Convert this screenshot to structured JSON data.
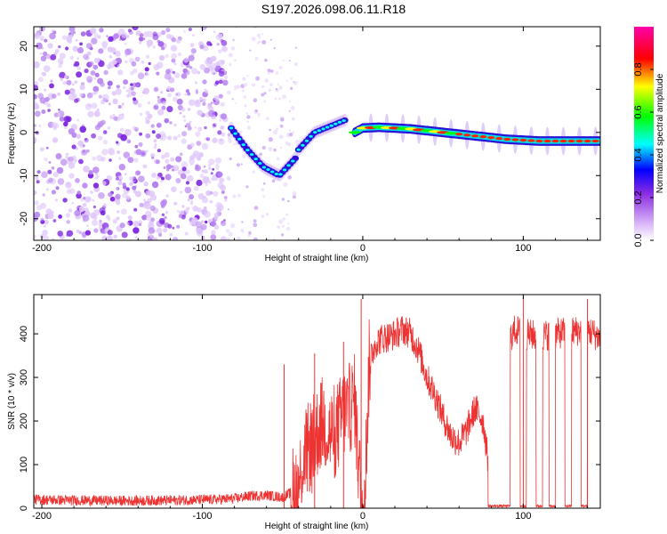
{
  "title": "S197.2026.098.06.11.R18",
  "chart_data": [
    {
      "type": "heatmap",
      "xlabel": "Height of straight line (km)",
      "ylabel": "Frequency (Hz)",
      "xlim": [
        -205,
        148
      ],
      "ylim": [
        -25,
        24.5
      ],
      "xticks": [
        -200,
        -100,
        0,
        100
      ],
      "yticks": [
        -20,
        -10,
        0,
        10,
        20
      ],
      "xtick_labels": [
        "-200",
        "-100",
        "0",
        "100"
      ],
      "ytick_labels": [
        "-20",
        "-10",
        "0",
        "10",
        "20"
      ],
      "colorbar": {
        "label": "Normalized spectral amplitude",
        "range": [
          0,
          1
        ],
        "ticks": [
          0.0,
          0.2,
          0.4,
          0.6,
          0.8
        ],
        "tick_labels": [
          "0.0",
          "0.2",
          "0.4",
          "0.6",
          "0.8"
        ],
        "colors": [
          "#ffffff",
          "#8a2be2",
          "#0000ff",
          "#00ffff",
          "#00ff00",
          "#ffff00",
          "#ff0000",
          "#ff00aa"
        ]
      },
      "features": [
        {
          "name": "noise region",
          "x_range": [
            -205,
            -85
          ],
          "y_range": [
            -25,
            24.5
          ],
          "amplitude": 0.15
        },
        {
          "name": "descending branch",
          "points": [
            [
              -82,
              1
            ],
            [
              -72,
              -4
            ],
            [
              -62,
              -8
            ],
            [
              -52,
              -10
            ],
            [
              -42,
              -6
            ]
          ],
          "amplitude": 0.45
        },
        {
          "name": "ascending branch",
          "points": [
            [
              -40,
              -4
            ],
            [
              -30,
              0
            ],
            [
              -20,
              1.5
            ],
            [
              -10,
              3
            ]
          ],
          "amplitude": 0.45
        },
        {
          "name": "main trace",
          "points": [
            [
              -5,
              0
            ],
            [
              0,
              1
            ],
            [
              10,
              1.2
            ],
            [
              30,
              0.8
            ],
            [
              50,
              0
            ],
            [
              70,
              -0.8
            ],
            [
              90,
              -1.6
            ],
            [
              110,
              -2
            ],
            [
              148,
              -2
            ]
          ],
          "amplitude": 0.95
        }
      ]
    },
    {
      "type": "line",
      "xlabel": "Height of straight line (km)",
      "ylabel": "SNR (10 * v/v)",
      "xlim": [
        -205,
        148
      ],
      "ylim": [
        0,
        490
      ],
      "xticks": [
        -200,
        -100,
        0,
        100
      ],
      "yticks": [
        0,
        100,
        200,
        300,
        400
      ],
      "xtick_labels": [
        "-200",
        "-100",
        "0",
        "100"
      ],
      "ytick_labels": [
        "0",
        "100",
        "200",
        "300",
        "400"
      ],
      "series": [
        {
          "name": "SNR",
          "color": "#ee3333",
          "x": [
            -205,
            -180,
            -150,
            -120,
            -90,
            -80,
            -70,
            -60,
            -50,
            -45,
            -40,
            -38,
            -35,
            -30,
            -25,
            -20,
            -15,
            -12,
            -8,
            -5,
            -3,
            -1,
            1,
            4,
            8,
            12,
            18,
            25,
            30,
            35,
            40,
            45,
            50,
            55,
            60,
            65,
            70,
            75,
            78,
            80,
            85,
            90,
            95,
            100,
            110,
            120,
            130,
            140,
            148
          ],
          "values": [
            20,
            18,
            17,
            18,
            20,
            22,
            28,
            30,
            25,
            35,
            45,
            100,
            130,
            160,
            200,
            170,
            190,
            220,
            230,
            250,
            120,
            30,
            10,
            330,
            380,
            390,
            395,
            410,
            400,
            360,
            300,
            260,
            210,
            165,
            150,
            180,
            230,
            200,
            110,
            20,
            10,
            380,
            410,
            400,
            395,
            400,
            405,
            410,
            390
          ]
        }
      ],
      "dropouts": [
        [
          78,
          92
        ],
        [
          98,
          102
        ],
        [
          108,
          112
        ],
        [
          116,
          120
        ],
        [
          126,
          130
        ],
        [
          136,
          140
        ]
      ],
      "spikes": [
        [
          -49,
          330
        ],
        [
          -30,
          355
        ],
        [
          -12,
          382
        ],
        [
          -1,
          480
        ],
        [
          100,
          485
        ],
        [
          140,
          480
        ]
      ]
    }
  ]
}
